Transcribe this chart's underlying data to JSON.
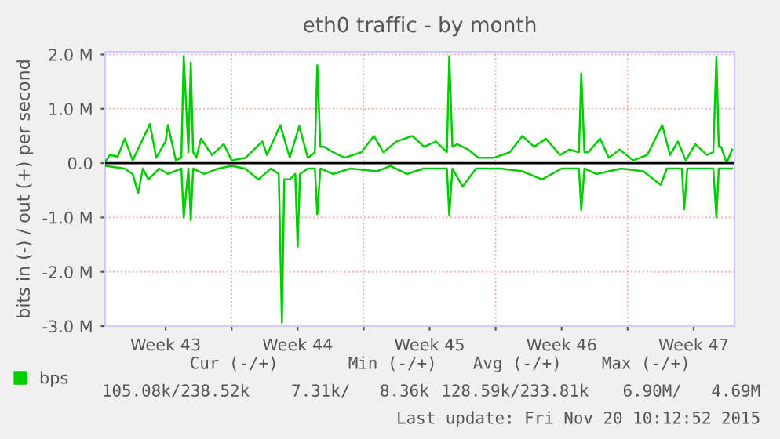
{
  "chart_data": {
    "type": "line",
    "title": "eth0 traffic - by month",
    "ylabel": "bits in (-) / out (+) per second",
    "xlim": [
      "2015-10-19T07:00",
      "2015-11-21T16:00"
    ],
    "xticks": [
      {
        "value": "2015-10-22T12:00",
        "label": "Week 43"
      },
      {
        "value": "2015-10-29T12:00",
        "label": "Week 44"
      },
      {
        "value": "2015-11-05T12:00",
        "label": "Week 45"
      },
      {
        "value": "2015-11-12T12:00",
        "label": "Week 46"
      },
      {
        "value": "2015-11-19T12:00",
        "label": "Week 47"
      },
      {
        "value": "2015-10-26",
        "label": null
      },
      {
        "value": "2015-11-02",
        "label": null
      },
      {
        "value": "2015-11-09",
        "label": null
      },
      {
        "value": "2015-11-16",
        "label": null
      }
    ],
    "ylim": [
      -3,
      2.05
    ],
    "yticks": [
      {
        "value": -3,
        "label": "-3.0 M"
      },
      {
        "value": -2,
        "label": "-2.0 M"
      },
      {
        "value": -1,
        "label": "-1.0 M"
      },
      {
        "value": 0,
        "label": "0.0"
      },
      {
        "value": 1,
        "label": "1.0 M"
      },
      {
        "value": 2,
        "label": "2.0 M"
      }
    ],
    "grid": true,
    "legend": "bottom left",
    "line_style": "solid",
    "marker": "none",
    "ref_lines": [
      {
        "axis": "y",
        "value": 0,
        "label": null,
        "color": "#000000"
      }
    ],
    "series": [
      {
        "name": "bps",
        "color": "#00cc00",
        "x": [
          "2015-10-19T07:00",
          "2015-10-19T13:00",
          "2015-10-19T23:00",
          "2015-10-20T08:00",
          "2015-10-20T18:00",
          "2015-10-21T16:00",
          "2015-10-22T00:00",
          "2015-10-22T12:00",
          "2015-10-22T15:00",
          "2015-10-23T01:00",
          "2015-10-23T08:00",
          "2015-10-23T11:00",
          "2015-10-23T17:00",
          "2015-10-23T20:00",
          "2015-10-23T23:00",
          "2015-10-24T03:00",
          "2015-10-24T09:00",
          "2015-10-24T23:00",
          "2015-10-25T14:00",
          "2015-10-26T00:00",
          "2015-10-26T18:00",
          "2015-10-27T15:00",
          "2015-10-27T21:00",
          "2015-10-28T14:00",
          "2015-10-29T02:00",
          "2015-10-29T14:00",
          "2015-10-30T01:00",
          "2015-10-30T10:00",
          "2015-10-30T13:00",
          "2015-10-30T17:00",
          "2015-10-30T22:00",
          "2015-10-31T09:00",
          "2015-11-01T00:00",
          "2015-11-01T21:00",
          "2015-11-02T13:00",
          "2015-11-03T01:00",
          "2015-11-03T18:00",
          "2015-11-04T14:00",
          "2015-11-05T05:00",
          "2015-11-05T20:00",
          "2015-11-06T10:00",
          "2015-11-06T13:00",
          "2015-11-06T17:00",
          "2015-11-06T23:00",
          "2015-11-07T13:00",
          "2015-11-08T02:00",
          "2015-11-08T22:00",
          "2015-11-09T18:00",
          "2015-11-10T10:00",
          "2015-11-11T01:00",
          "2015-11-11T16:00",
          "2015-11-12T10:00",
          "2015-11-12T22:00",
          "2015-11-13T10:00",
          "2015-11-13T13:00",
          "2015-11-13T17:00",
          "2015-11-13T22:00",
          "2015-11-14T13:00",
          "2015-11-15T00:00",
          "2015-11-15T14:00",
          "2015-11-16T07:00",
          "2015-11-17T01:00",
          "2015-11-17T20:00",
          "2015-11-18T06:00",
          "2015-11-18T16:00",
          "2015-11-19T02:00",
          "2015-11-19T14:00",
          "2015-11-20T05:00",
          "2015-11-20T13:00",
          "2015-11-20T17:00",
          "2015-11-20T20:00",
          "2015-11-20T23:00",
          "2015-11-21T06:00",
          "2015-11-21T13:00"
        ],
        "values": [
          0.02,
          0.15,
          0.12,
          0.45,
          0.05,
          0.72,
          0.1,
          0.4,
          0.7,
          0.05,
          0.1,
          1.97,
          0.2,
          1.85,
          0.2,
          0.1,
          0.45,
          0.15,
          0.35,
          0.05,
          0.1,
          0.4,
          0.15,
          0.7,
          0.1,
          0.68,
          0.1,
          0.2,
          1.8,
          0.3,
          0.3,
          0.2,
          0.1,
          0.2,
          0.5,
          0.2,
          0.4,
          0.5,
          0.3,
          0.4,
          0.2,
          1.97,
          0.3,
          0.35,
          0.25,
          0.1,
          0.1,
          0.2,
          0.5,
          0.3,
          0.45,
          0.15,
          0.25,
          0.2,
          1.65,
          0.2,
          0.2,
          0.45,
          0.1,
          0.25,
          0.05,
          0.15,
          0.7,
          0.15,
          0.4,
          0.05,
          0.35,
          0.15,
          0.2,
          1.95,
          0.3,
          0.3,
          0.0,
          0.25
        ]
      },
      {
        "color": "#00cc00",
        "x": [
          "2015-10-19T07:00",
          "2015-10-20T08:00",
          "2015-10-20T18:00",
          "2015-10-21T01:00",
          "2015-10-21T07:00",
          "2015-10-21T14:00",
          "2015-10-22T04:00",
          "2015-10-22T15:00",
          "2015-10-23T08:00",
          "2015-10-23T11:00",
          "2015-10-23T17:00",
          "2015-10-23T20:00",
          "2015-10-23T23:00",
          "2015-10-24T13:00",
          "2015-10-25T07:00",
          "2015-10-26T00:00",
          "2015-10-26T17:00",
          "2015-10-27T10:00",
          "2015-10-28T02:00",
          "2015-10-28T12:00",
          "2015-10-28T16:00",
          "2015-10-28T19:00",
          "2015-10-29T02:00",
          "2015-10-29T09:00",
          "2015-10-29T12:00",
          "2015-10-29T15:00",
          "2015-10-30T01:00",
          "2015-10-30T10:00",
          "2015-10-30T13:00",
          "2015-10-30T17:00",
          "2015-10-31T09:00",
          "2015-11-01T07:00",
          "2015-11-02T17:00",
          "2015-11-03T10:00",
          "2015-11-04T07:00",
          "2015-11-05T04:00",
          "2015-11-06T10:00",
          "2015-11-06T13:00",
          "2015-11-06T17:00",
          "2015-11-07T06:00",
          "2015-11-07T23:00",
          "2015-11-09T06:00",
          "2015-11-10T10:00",
          "2015-11-11T11:00",
          "2015-11-12T12:00",
          "2015-11-13T10:00",
          "2015-11-13T13:00",
          "2015-11-13T17:00",
          "2015-11-14T08:00",
          "2015-11-15T16:00",
          "2015-11-16T20:00",
          "2015-11-17T18:00",
          "2015-11-18T02:00",
          "2015-11-18T21:00",
          "2015-11-19T00:00",
          "2015-11-19T04:00",
          "2015-11-20T05:00",
          "2015-11-20T13:00",
          "2015-11-20T17:00",
          "2015-11-20T20:00",
          "2015-11-21T13:00"
        ],
        "values": [
          -0.05,
          -0.1,
          -0.2,
          -0.55,
          -0.1,
          -0.3,
          -0.1,
          -0.2,
          -0.1,
          -1.0,
          -0.1,
          -1.05,
          -0.1,
          -0.2,
          -0.1,
          -0.05,
          -0.1,
          -0.3,
          -0.1,
          -0.2,
          -2.94,
          -0.3,
          -0.3,
          -0.2,
          -1.54,
          -0.2,
          -0.1,
          -0.1,
          -0.94,
          -0.1,
          -0.2,
          -0.1,
          -0.15,
          -0.05,
          -0.2,
          -0.1,
          -0.1,
          -0.97,
          -0.1,
          -0.43,
          -0.1,
          -0.1,
          -0.15,
          -0.3,
          -0.1,
          -0.1,
          -0.86,
          -0.1,
          -0.2,
          -0.1,
          -0.15,
          -0.4,
          -0.1,
          -0.1,
          -0.85,
          -0.1,
          -0.1,
          -0.1,
          -1.0,
          -0.1,
          -0.1
        ]
      }
    ],
    "annotations": [
      "Cur (-/+)",
      "Min (-/+)",
      "Avg (-/+)",
      "Max (-/+)",
      "105.08k/238.52k",
      "7.31k/   8.36k",
      "128.59k/233.81k",
      "6.90M/   4.69M",
      "Last update: Fri Nov 20 10:12:52 2015"
    ]
  }
}
